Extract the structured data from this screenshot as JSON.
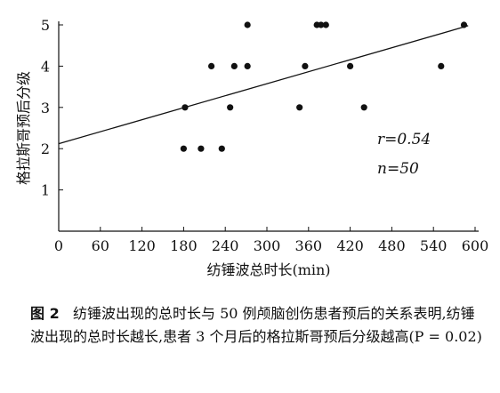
{
  "chart_data": {
    "type": "scatter",
    "xlabel": "纺锤波总时长(min)",
    "ylabel": "格拉斯哥预后分级",
    "xlim": [
      0,
      600
    ],
    "ylim": [
      0,
      5
    ],
    "xticks": [
      0,
      60,
      120,
      180,
      240,
      300,
      360,
      420,
      480,
      540,
      600
    ],
    "yticks": [
      1,
      2,
      3,
      4,
      5
    ],
    "points": [
      {
        "x": 180,
        "y": 2
      },
      {
        "x": 205,
        "y": 2
      },
      {
        "x": 235,
        "y": 2
      },
      {
        "x": 182,
        "y": 3
      },
      {
        "x": 247,
        "y": 3
      },
      {
        "x": 347,
        "y": 3
      },
      {
        "x": 440,
        "y": 3
      },
      {
        "x": 220,
        "y": 4
      },
      {
        "x": 253,
        "y": 4
      },
      {
        "x": 272,
        "y": 4
      },
      {
        "x": 355,
        "y": 4
      },
      {
        "x": 420,
        "y": 4
      },
      {
        "x": 551,
        "y": 4
      },
      {
        "x": 272,
        "y": 5
      },
      {
        "x": 372,
        "y": 5
      },
      {
        "x": 378,
        "y": 5
      },
      {
        "x": 385,
        "y": 5
      },
      {
        "x": 584,
        "y": 5
      }
    ],
    "fit_line": {
      "x": [
        0,
        590
      ],
      "y": [
        2.12,
        4.98
      ]
    },
    "annotations": {
      "r": "r=0.54",
      "n": "n=50"
    }
  },
  "caption": {
    "label": "图 2",
    "text": "纺锤波出现的总时长与 50 例颅脑创伤患者预后的关系表明,纺锤波出现的总时长越长,患者 3 个月后的格拉斯哥预后分级越高(P = 0.02)"
  }
}
